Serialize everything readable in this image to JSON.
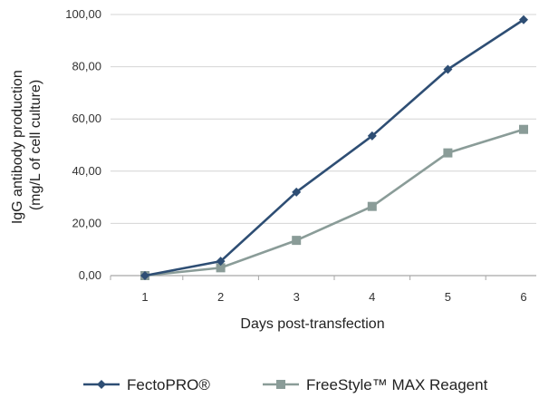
{
  "chart_data": {
    "type": "line",
    "title": "",
    "xlabel": "Days post-transfection",
    "ylabel_lines": [
      "IgG antibody production",
      "(mg/L of cell culture)"
    ],
    "categories": [
      "1",
      "2",
      "3",
      "4",
      "5",
      "6"
    ],
    "y_ticks": [
      "0,00",
      "20,00",
      "40,00",
      "60,00",
      "80,00",
      "100,00"
    ],
    "ylim": [
      0,
      100
    ],
    "grid": true,
    "legend_position": "bottom",
    "series": [
      {
        "name": "FectoPRO®",
        "color": "#2e4e74",
        "marker": "diamond",
        "values": [
          0,
          5.5,
          32,
          53.5,
          79,
          98
        ]
      },
      {
        "name": "FreeStyle™ MAX Reagent",
        "color": "#8a9c98",
        "marker": "square",
        "values": [
          0,
          3,
          13.5,
          26.5,
          47,
          56
        ]
      }
    ]
  }
}
